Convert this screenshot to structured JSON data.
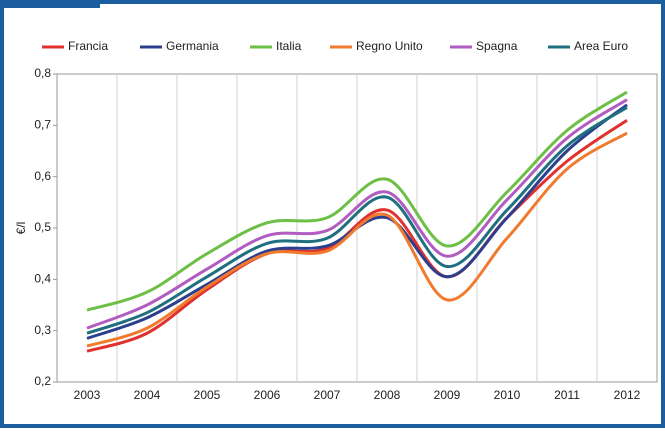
{
  "chart_data": {
    "type": "line",
    "y_label": "€/l",
    "categories": [
      "2003",
      "2004",
      "2005",
      "2006",
      "2007",
      "2008",
      "2009",
      "2010",
      "2011",
      "2012"
    ],
    "series": [
      {
        "name": "Francia",
        "color": "#e0312f",
        "values": [
          0.26,
          0.295,
          0.38,
          0.45,
          0.46,
          0.535,
          0.405,
          0.52,
          0.63,
          0.71
        ]
      },
      {
        "name": "Germania",
        "color": "#2c3f8f",
        "values": [
          0.285,
          0.325,
          0.39,
          0.455,
          0.465,
          0.52,
          0.405,
          0.52,
          0.65,
          0.74
        ]
      },
      {
        "name": "Italia",
        "color": "#6dbf45",
        "values": [
          0.34,
          0.375,
          0.45,
          0.51,
          0.52,
          0.595,
          0.465,
          0.57,
          0.69,
          0.765
        ]
      },
      {
        "name": "Regno Unito",
        "color": "#f07a2e",
        "values": [
          0.27,
          0.305,
          0.385,
          0.45,
          0.455,
          0.525,
          0.36,
          0.48,
          0.615,
          0.685
        ]
      },
      {
        "name": "Spagna",
        "color": "#b05cc0",
        "values": [
          0.305,
          0.35,
          0.42,
          0.485,
          0.495,
          0.57,
          0.445,
          0.555,
          0.675,
          0.75
        ]
      },
      {
        "name": "Area Euro",
        "color": "#1f6f7f",
        "values": [
          0.295,
          0.335,
          0.405,
          0.47,
          0.48,
          0.56,
          0.425,
          0.535,
          0.66,
          0.735
        ]
      }
    ],
    "ylim": [
      0.2,
      0.8
    ],
    "yticks": [
      {
        "value": 0.2,
        "label": "0,2"
      },
      {
        "value": 0.3,
        "label": "0,3"
      },
      {
        "value": 0.4,
        "label": "0,4"
      },
      {
        "value": 0.5,
        "label": "0,5"
      },
      {
        "value": 0.6,
        "label": "0,6"
      },
      {
        "value": 0.7,
        "label": "0,7"
      },
      {
        "value": 0.8,
        "label": "0,8"
      }
    ],
    "grid": "x"
  }
}
